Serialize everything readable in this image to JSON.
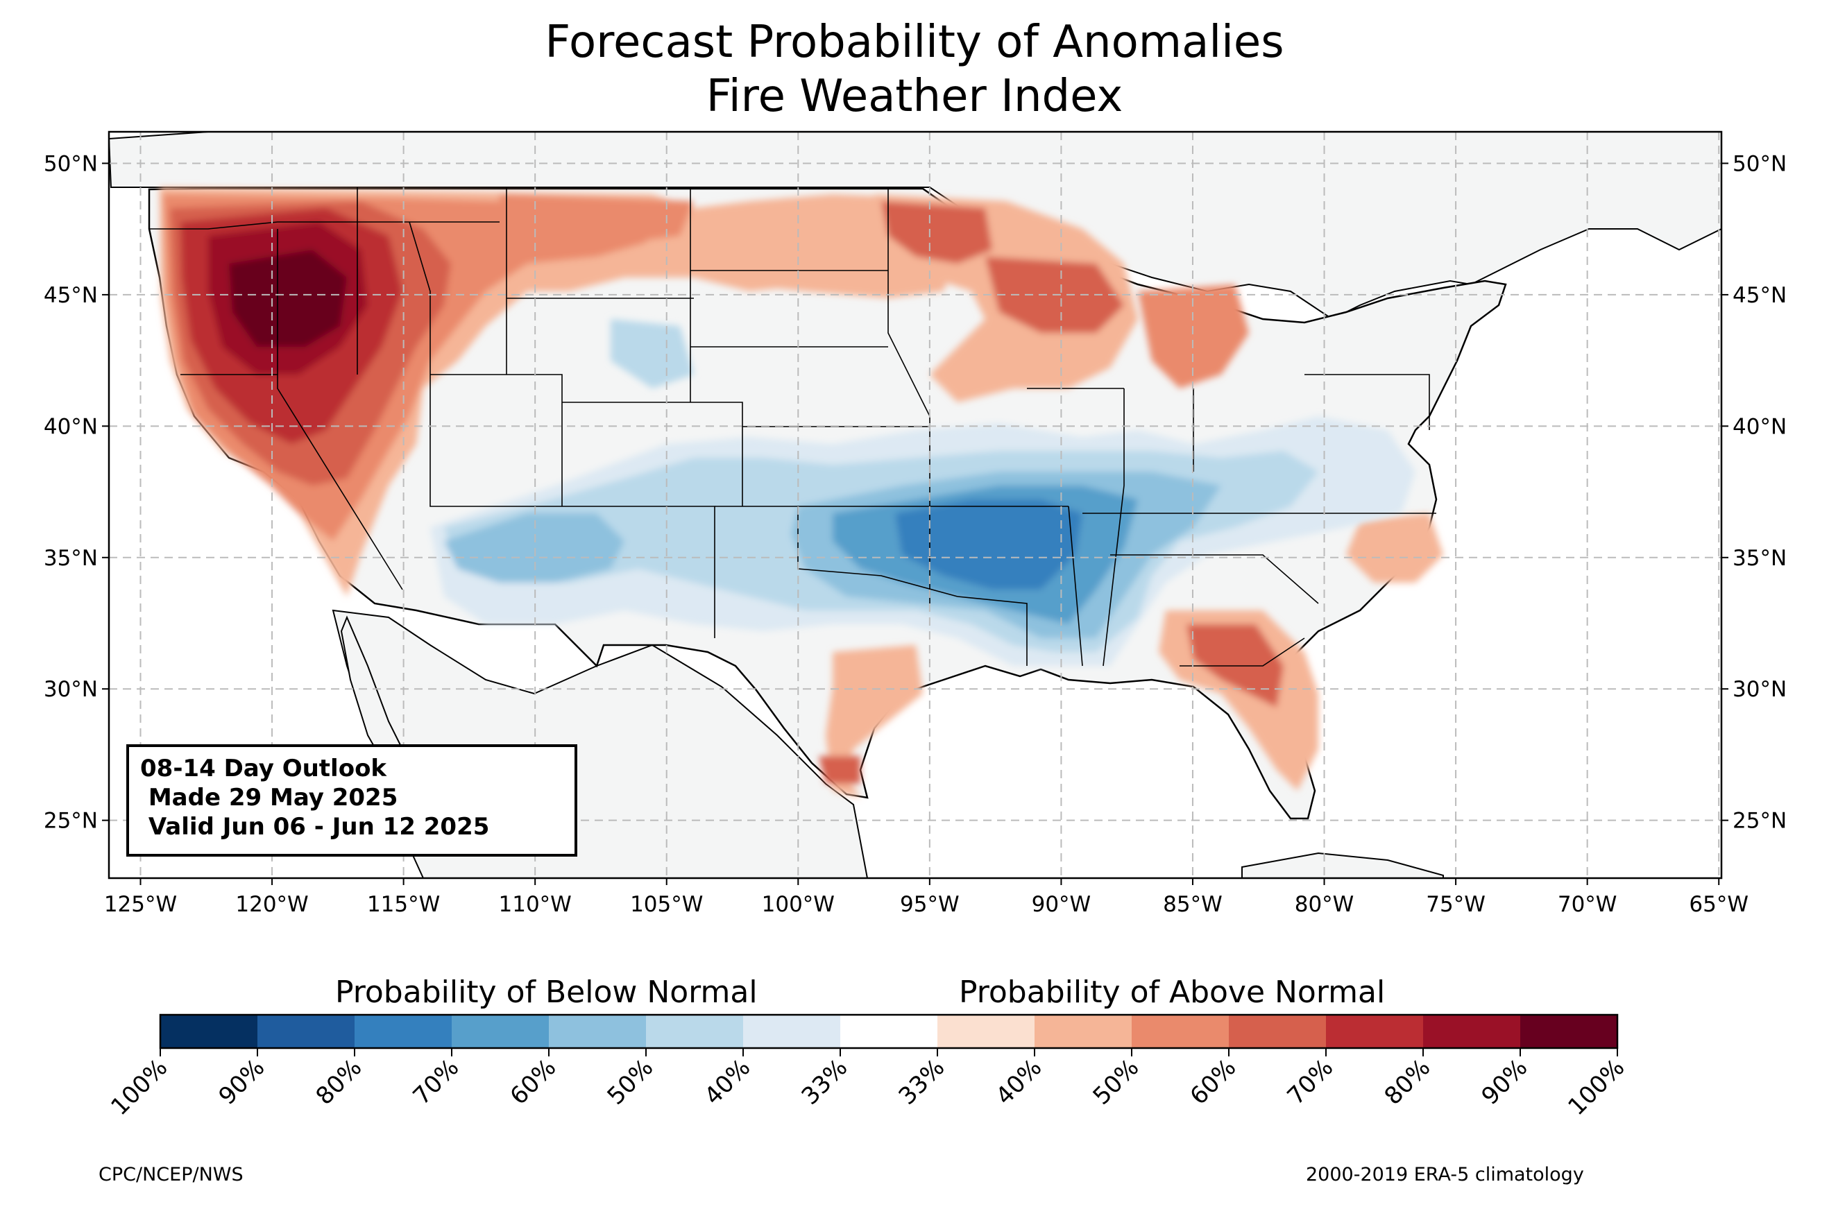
{
  "title": {
    "line1": "Forecast Probability of Anomalies",
    "line2": "Fire Weather Index"
  },
  "map": {
    "lat_labels": [
      "50°N",
      "45°N",
      "40°N",
      "35°N",
      "30°N",
      "25°N"
    ],
    "lat_values": [
      50,
      45,
      40,
      35,
      30,
      25
    ],
    "lon_labels": [
      "125°W",
      "120°W",
      "115°W",
      "110°W",
      "105°W",
      "100°W",
      "95°W",
      "90°W",
      "85°W",
      "80°W",
      "75°W",
      "70°W",
      "65°W"
    ],
    "lon_values": [
      -125,
      -120,
      -115,
      -110,
      -105,
      -100,
      -95,
      -90,
      -85,
      -80,
      -75,
      -70,
      -65
    ],
    "extent": {
      "lon": [
        -126.2,
        -64.9
      ],
      "lat": [
        22.8,
        51.2
      ]
    },
    "gridlines": true,
    "land_color": "#f4f5f5",
    "ocean_color": "#ffffff"
  },
  "outlook": {
    "line1": "08-14 Day Outlook",
    "line2": " Made 29 May 2025",
    "line3": " Valid Jun 06 - Jun 12 2025"
  },
  "colorbar": {
    "below_label": "Probability of Below Normal",
    "above_label": "Probability of Above Normal",
    "colors": [
      "#053061",
      "#1f5c9e",
      "#3480be",
      "#579fcb",
      "#8ec1de",
      "#bad9ea",
      "#dde9f3",
      "#ffffff",
      "#fbe0d0",
      "#f5b597",
      "#ea8a6c",
      "#d6604d",
      "#bb2d33",
      "#9a1127",
      "#67001f"
    ],
    "tick_labels": [
      "100%",
      "90%",
      "80%",
      "70%",
      "60%",
      "50%",
      "40%",
      "33%",
      "33%",
      "40%",
      "50%",
      "60%",
      "70%",
      "80%",
      "90%",
      "100%"
    ]
  },
  "footer": {
    "left": "CPC/NCEP/NWS",
    "right": "2000-2019 ERA-5 climatology"
  }
}
